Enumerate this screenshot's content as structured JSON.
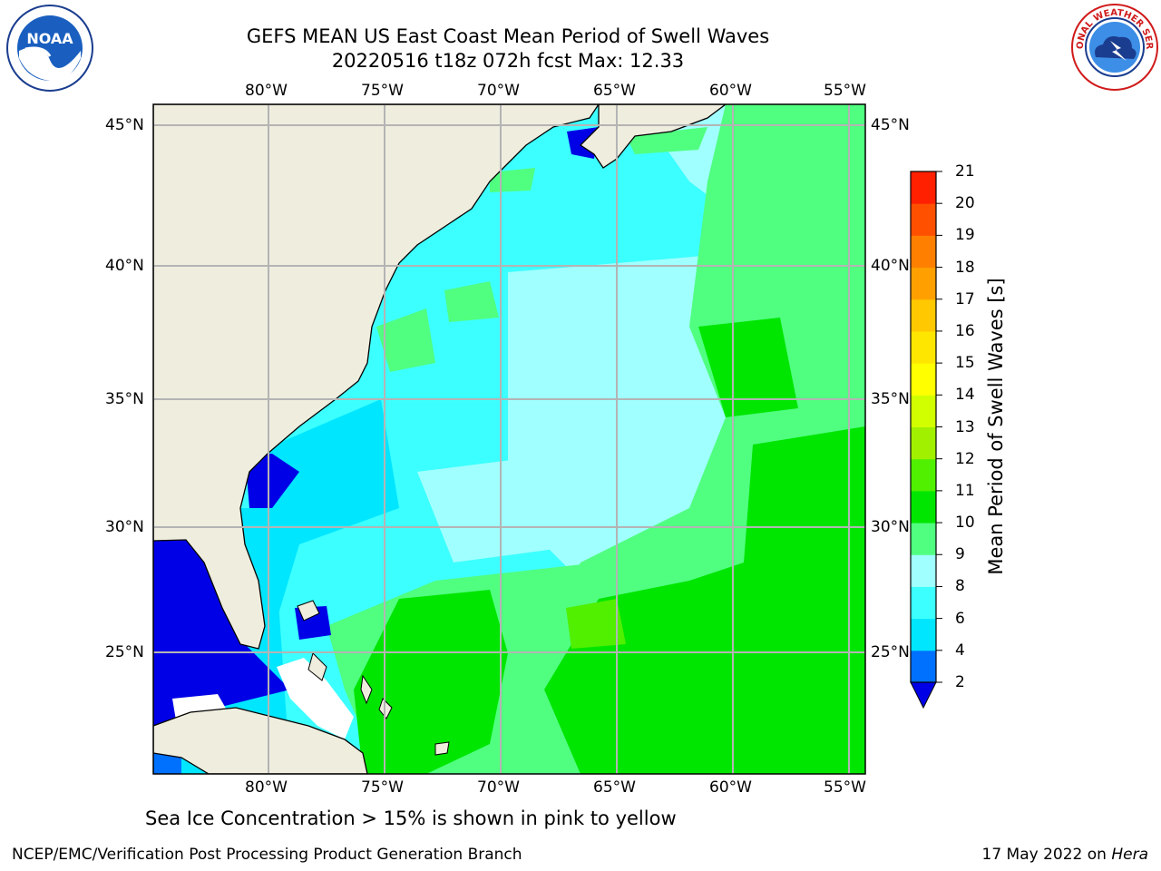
{
  "header": {
    "title_line1": "GEFS MEAN US East Coast Mean Period of Swell Waves",
    "title_line2": "20220516 t18z 072h fcst   Max: 12.33"
  },
  "map": {
    "lon_labels": [
      "80°W",
      "75°W",
      "70°W",
      "65°W",
      "60°W",
      "55°W"
    ],
    "lat_labels": [
      "45°N",
      "40°N",
      "35°N",
      "30°N",
      "25°N"
    ],
    "land_color": "#efedde",
    "grid_color": "#b4b4b4"
  },
  "colorbar": {
    "label": "Mean Period of Swell Waves [s]",
    "ticks": [
      "2",
      "4",
      "6",
      "8",
      "9",
      "10",
      "11",
      "12",
      "13",
      "14",
      "15",
      "16",
      "17",
      "18",
      "19",
      "20",
      "21"
    ],
    "colors": [
      "#0070ff",
      "#00e6ff",
      "#3cffff",
      "#a0ffff",
      "#50ff80",
      "#00e600",
      "#50f000",
      "#a0f000",
      "#d2ff00",
      "#ffff00",
      "#ffe600",
      "#ffc800",
      "#ffa000",
      "#ff8000",
      "#ff5000",
      "#ff2000"
    ],
    "under_color": "#0000e6"
  },
  "notes": {
    "ice": "Sea Ice Concentration > 15% is shown in pink to yellow"
  },
  "footer": {
    "left": "NCEP/EMC/Verification Post Processing Product Generation Branch",
    "date": "17 May 2022 on ",
    "host": "Hera"
  },
  "logos": {
    "noaa_text": "NOAA",
    "nws_text": "NATIONAL WEATHER SERVICE"
  }
}
